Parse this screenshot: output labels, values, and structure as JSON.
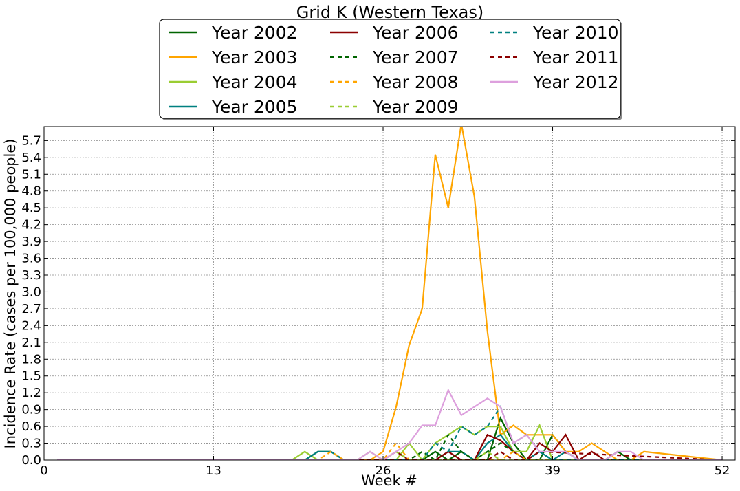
{
  "chart_data": {
    "type": "line",
    "title": "Grid K (Western Texas)",
    "xlabel": "Week #",
    "ylabel": "Incidence Rate (cases per 100,000 people)",
    "xlim": [
      0,
      53
    ],
    "ylim": [
      0,
      5.95
    ],
    "xticks": [
      0,
      13,
      26,
      39,
      52
    ],
    "yticks": [
      0.0,
      0.3,
      0.6,
      0.9,
      1.2,
      1.5,
      1.8,
      2.1,
      2.4,
      2.7,
      3.0,
      3.3,
      3.6,
      3.9,
      4.2,
      4.5,
      4.8,
      5.1,
      5.4,
      5.7
    ],
    "grid": true,
    "legend_position": "top-center",
    "series": [
      {
        "name": "Year 2002",
        "color": "#006400",
        "dash": false,
        "x": [
          1,
          19,
          20,
          21,
          22,
          23,
          24,
          25,
          26,
          27,
          28,
          29,
          30,
          31,
          32,
          33,
          34,
          35,
          36,
          37,
          38,
          39,
          40,
          41,
          42,
          43,
          44,
          45,
          52
        ],
        "y": [
          0,
          0,
          0,
          0.15,
          0.15,
          0,
          0,
          0,
          0,
          0,
          0,
          0,
          0.15,
          0,
          0.15,
          0,
          0,
          0.75,
          0.3,
          0,
          0,
          0.45,
          0.15,
          0,
          0,
          0,
          0.15,
          0,
          0
        ]
      },
      {
        "name": "Year 2003",
        "color": "#FFA500",
        "dash": false,
        "x": [
          1,
          25,
          26,
          27,
          28,
          29,
          30,
          31,
          32,
          33,
          34,
          35,
          36,
          37,
          38,
          39,
          40,
          41,
          42,
          43,
          44,
          45,
          46,
          52
        ],
        "y": [
          0,
          0,
          0.15,
          0.95,
          2.05,
          2.7,
          5.45,
          4.5,
          6.0,
          4.7,
          2.3,
          0.45,
          0.62,
          0.45,
          0.45,
          0.45,
          0.15,
          0.15,
          0.3,
          0.15,
          0,
          0,
          0.15,
          0
        ]
      },
      {
        "name": "Year 2004",
        "color": "#9ACD32",
        "dash": false,
        "x": [
          1,
          19,
          20,
          21,
          22,
          23,
          24,
          25,
          26,
          27,
          28,
          29,
          30,
          31,
          32,
          33,
          34,
          35,
          36,
          37,
          38,
          39,
          40,
          41,
          52
        ],
        "y": [
          0,
          0,
          0.15,
          0,
          0,
          0,
          0,
          0.15,
          0,
          0,
          0.3,
          0,
          0.3,
          0.45,
          0.6,
          0.45,
          0.6,
          0.6,
          0.15,
          0.15,
          0.62,
          0,
          0,
          0,
          0
        ]
      },
      {
        "name": "Year 2005",
        "color": "#008080",
        "dash": false,
        "x": [
          1,
          20,
          21,
          22,
          23,
          24,
          25,
          26,
          27,
          28,
          29,
          30,
          31,
          32,
          33,
          34,
          35,
          36,
          37,
          38,
          39,
          40,
          41,
          42,
          43,
          52
        ],
        "y": [
          0,
          0,
          0.15,
          0.15,
          0,
          0,
          0,
          0,
          0,
          0,
          0,
          0,
          0.15,
          0.15,
          0,
          0.3,
          0.45,
          0.15,
          0,
          0.15,
          0,
          0.15,
          0,
          0,
          0,
          0
        ]
      },
      {
        "name": "Year 2006",
        "color": "#8B0000",
        "dash": false,
        "x": [
          1,
          26,
          27,
          28,
          29,
          30,
          31,
          32,
          33,
          34,
          35,
          36,
          37,
          38,
          39,
          40,
          41,
          42,
          43,
          44,
          52
        ],
        "y": [
          0,
          0,
          0.15,
          0,
          0,
          0,
          0.15,
          0,
          0,
          0.45,
          0.35,
          0.15,
          0,
          0.3,
          0.15,
          0.45,
          0,
          0.15,
          0,
          0,
          0
        ]
      },
      {
        "name": "Year 2007",
        "color": "#006400",
        "dash": true,
        "x": [
          1,
          27,
          28,
          29,
          30,
          31,
          32,
          33,
          34,
          35,
          36,
          37,
          38,
          39,
          40,
          41,
          52
        ],
        "y": [
          0,
          0,
          0,
          0.15,
          0,
          0.45,
          0.15,
          0,
          0.15,
          0.3,
          0.15,
          0,
          0,
          0,
          0,
          0,
          0
        ]
      },
      {
        "name": "Year 2008",
        "color": "#FFA500",
        "dash": true,
        "x": [
          1,
          21,
          22,
          23,
          26,
          27,
          28,
          29,
          34,
          35,
          36,
          37,
          38,
          39,
          52
        ],
        "y": [
          0,
          0,
          0.15,
          0,
          0,
          0.3,
          0,
          0,
          0,
          0,
          0.15,
          0,
          0,
          0,
          0
        ]
      },
      {
        "name": "Year 2009",
        "color": "#9ACD32",
        "dash": true,
        "x": [
          1,
          26,
          27,
          28,
          29,
          33,
          34,
          35,
          36,
          52
        ],
        "y": [
          0,
          0,
          0.15,
          0,
          0,
          0,
          0.15,
          0,
          0,
          0
        ]
      },
      {
        "name": "Year 2010",
        "color": "#008080",
        "dash": true,
        "x": [
          1,
          29,
          30,
          31,
          32,
          33,
          34,
          35,
          36,
          37,
          38,
          39,
          52
        ],
        "y": [
          0,
          0,
          0.3,
          0.15,
          0.6,
          0.45,
          0.6,
          0.95,
          0.3,
          0.45,
          0.15,
          0,
          0
        ]
      },
      {
        "name": "Year 2011",
        "color": "#8B0000",
        "dash": true,
        "x": [
          1,
          34,
          35,
          36,
          37,
          38,
          52
        ],
        "y": [
          0,
          0,
          0.15,
          0,
          0,
          0.15,
          0
        ]
      },
      {
        "name": "Year 2012",
        "color": "#DDA0DD",
        "dash": false,
        "x": [
          1,
          24,
          25,
          26,
          27,
          28,
          29,
          30,
          31,
          32,
          33,
          34,
          35,
          36,
          37,
          38,
          39,
          40,
          41,
          42,
          43,
          44,
          45,
          46,
          52
        ],
        "y": [
          0,
          0,
          0.15,
          0,
          0.15,
          0.3,
          0.62,
          0.62,
          1.25,
          0.8,
          0.95,
          1.1,
          0.95,
          0.3,
          0.45,
          0.15,
          0.15,
          0.15,
          0,
          0,
          0,
          0.15,
          0.15,
          0,
          0
        ]
      }
    ]
  }
}
